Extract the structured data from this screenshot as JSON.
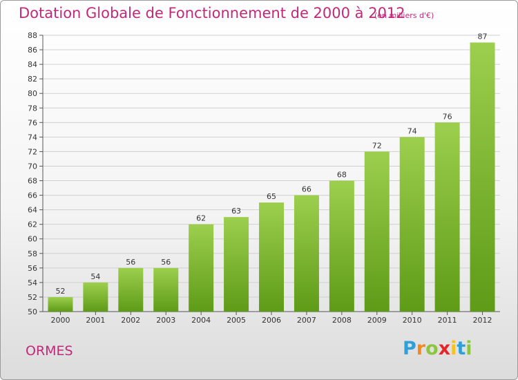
{
  "title": "Dotation Globale de Fonctionnement de 2000 à 2012",
  "subtitle": "(en milliers d'€)",
  "commune": "ORMES",
  "brand": {
    "letters": [
      "P",
      "r",
      "o",
      "x",
      "i",
      "t",
      "i"
    ],
    "colors": [
      "#2f9fd8",
      "#f08a1c",
      "#8cc63f",
      "#e4262b",
      "#f6c21b",
      "#2f9fd8",
      "#8cc63f"
    ]
  },
  "colors": {
    "accent": "#c0297a",
    "bar_light": "#9ccf4d",
    "bar_dark": "#5e9b17",
    "grid": "#cfcfcf"
  },
  "chart_data": {
    "type": "bar",
    "title": "Dotation Globale de Fonctionnement de 2000 à 2012",
    "xlabel": "",
    "ylabel": "",
    "ylim": [
      50,
      88
    ],
    "yticks": [
      50,
      52,
      54,
      56,
      58,
      60,
      62,
      64,
      66,
      68,
      70,
      72,
      74,
      76,
      78,
      80,
      82,
      84,
      86,
      88
    ],
    "grid": true,
    "categories": [
      "2000",
      "2001",
      "2002",
      "2003",
      "2004",
      "2005",
      "2006",
      "2007",
      "2008",
      "2009",
      "2010",
      "2011",
      "2012"
    ],
    "values": [
      52,
      54,
      56,
      56,
      62,
      63,
      65,
      66,
      68,
      72,
      74,
      76,
      87
    ]
  }
}
